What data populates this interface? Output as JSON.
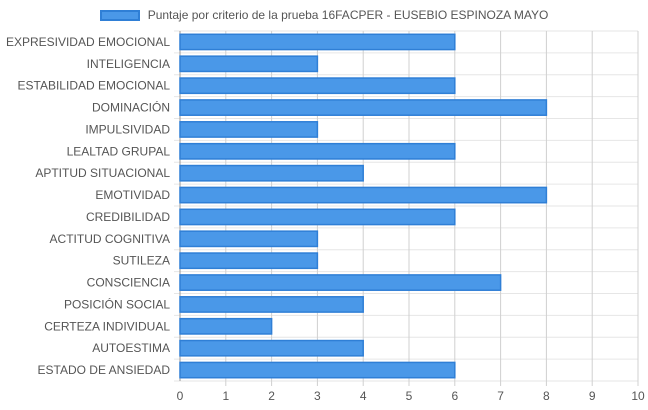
{
  "chart_data": {
    "type": "bar",
    "orientation": "horizontal",
    "legend_position": "top",
    "grid": true,
    "bar_color": "#4a98e8",
    "bar_border_color": "#2f7fd6",
    "grid_color": "#e6e6e6",
    "series": [
      {
        "name": "Puntaje por criterio de la prueba 16FACPER - EUSEBIO ESPINOZA MAYO",
        "values": [
          6,
          3,
          6,
          8,
          3,
          6,
          4,
          8,
          6,
          3,
          3,
          7,
          4,
          2,
          4,
          6
        ]
      }
    ],
    "categories": [
      "EXPRESIVIDAD EMOCIONAL",
      "INTELIGENCIA",
      "ESTABILIDAD EMOCIONAL",
      "DOMINACIÓN",
      "IMPULSIVIDAD",
      "LEALTAD GRUPAL",
      "APTITUD SITUACIONAL",
      "EMOTIVIDAD",
      "CREDIBILIDAD",
      "ACTITUD COGNITIVA",
      "SUTILEZA",
      "CONSCIENCIA",
      "POSICIÓN SOCIAL",
      "CERTEZA INDIVIDUAL",
      "AUTOESTIMA",
      "ESTADO DE ANSIEDAD"
    ],
    "xlim": [
      0,
      10
    ],
    "x_ticks": [
      "0",
      "1",
      "2",
      "3",
      "4",
      "5",
      "6",
      "7",
      "8",
      "9",
      "10"
    ]
  }
}
